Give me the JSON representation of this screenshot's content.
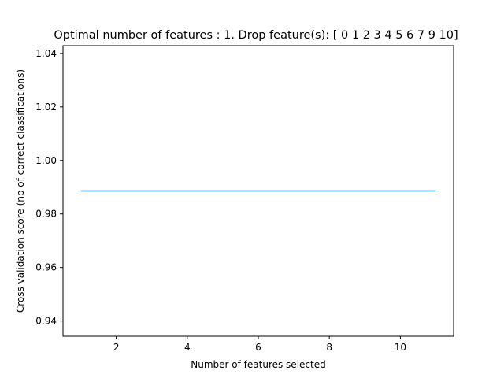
{
  "chart_data": {
    "type": "line",
    "title": "Optimal number of features : 1. Drop feature(s): [ 0  1  2  3  4  5  6  7  9 10]",
    "xlabel": "Number of features selected",
    "ylabel": "Cross validation score (nb of correct classifications)",
    "x": [
      1,
      2,
      3,
      4,
      5,
      6,
      7,
      8,
      9,
      10,
      11
    ],
    "series": [
      {
        "values": [
          0.9886,
          0.9886,
          0.9886,
          0.9886,
          0.9886,
          0.9886,
          0.9886,
          0.9886,
          0.9886,
          0.9886,
          0.9886
        ],
        "color": "#1f77b4"
      }
    ],
    "xlim": [
      0.5,
      11.5
    ],
    "ylim": [
      0.9343,
      1.0429
    ],
    "xticks": [
      2,
      4,
      6,
      8,
      10
    ],
    "xtick_labels": [
      "2",
      "4",
      "6",
      "8",
      "10"
    ],
    "yticks": [
      0.94,
      0.96,
      0.98,
      1.0,
      1.02,
      1.04
    ],
    "ytick_labels": [
      "0.94",
      "0.96",
      "0.98",
      "1.00",
      "1.02",
      "1.04"
    ],
    "grid": false,
    "legend": false
  }
}
